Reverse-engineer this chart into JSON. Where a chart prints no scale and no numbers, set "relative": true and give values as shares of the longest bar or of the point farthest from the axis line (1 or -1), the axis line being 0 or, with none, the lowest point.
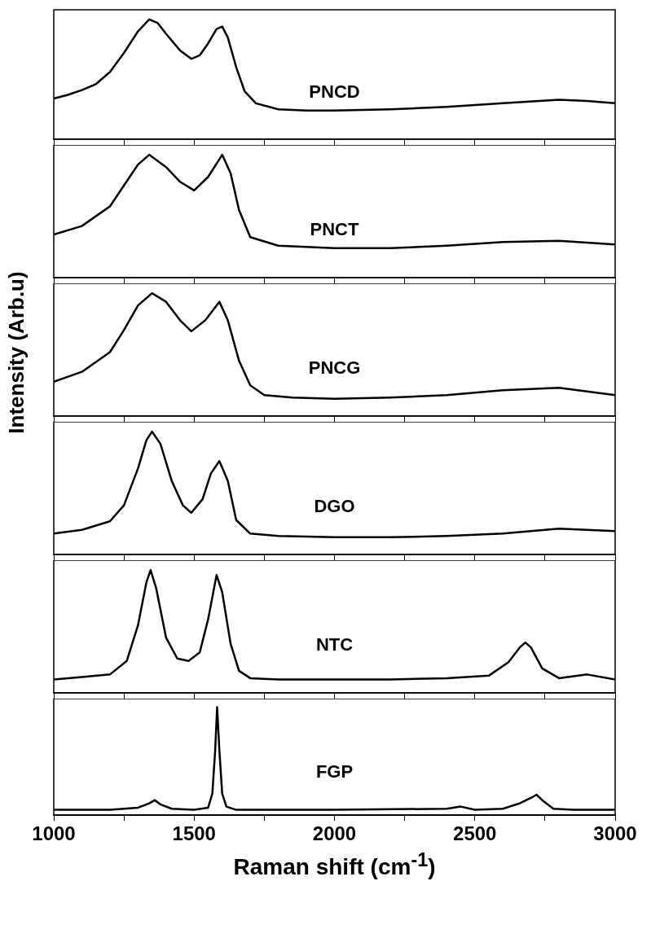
{
  "chart_data": [
    {
      "type": "line",
      "relative": true,
      "tick_labels": false,
      "xlim": [
        1000,
        3000
      ],
      "xticks": [
        1000,
        {
          "value": 1250,
          "label": null
        },
        1500,
        {
          "value": 1750,
          "label": null
        },
        2000,
        {
          "value": 2250,
          "label": null
        },
        2500,
        {
          "value": 2750,
          "label": null
        },
        3000
      ],
      "x": [
        1000,
        1050,
        1100,
        1150,
        1200,
        1250,
        1300,
        1340,
        1370,
        1400,
        1450,
        1490,
        1520,
        1550,
        1580,
        1600,
        1620,
        1650,
        1680,
        1720,
        1800,
        1900,
        2000,
        2200,
        2400,
        2600,
        2800,
        2900,
        3000
      ],
      "series": [
        {
          "name": "PNCD",
          "color": "#000000",
          "values": [
            0.34,
            0.37,
            0.41,
            0.46,
            0.56,
            0.72,
            0.9,
            1.0,
            0.97,
            0.88,
            0.74,
            0.67,
            0.7,
            0.8,
            0.92,
            0.94,
            0.85,
            0.6,
            0.4,
            0.3,
            0.25,
            0.24,
            0.24,
            0.25,
            0.27,
            0.3,
            0.33,
            0.32,
            0.3
          ]
        }
      ]
    },
    {
      "type": "line",
      "relative": true,
      "tick_labels": false,
      "xlim": [
        1000,
        3000
      ],
      "xticks": [
        1000,
        {
          "value": 1250,
          "label": null
        },
        1500,
        {
          "value": 1750,
          "label": null
        },
        2000,
        {
          "value": 2250,
          "label": null
        },
        2500,
        {
          "value": 2750,
          "label": null
        },
        3000
      ],
      "x": [
        1000,
        1100,
        1200,
        1250,
        1300,
        1340,
        1400,
        1450,
        1500,
        1550,
        1600,
        1630,
        1660,
        1700,
        1800,
        2000,
        2200,
        2400,
        2600,
        2800,
        3000
      ],
      "series": [
        {
          "name": "PNCT",
          "color": "#000000",
          "values": [
            0.35,
            0.42,
            0.58,
            0.75,
            0.92,
            1.0,
            0.9,
            0.78,
            0.71,
            0.82,
            1.0,
            0.85,
            0.55,
            0.33,
            0.26,
            0.24,
            0.24,
            0.26,
            0.29,
            0.3,
            0.27
          ]
        }
      ]
    },
    {
      "type": "line",
      "relative": true,
      "tick_labels": false,
      "xlim": [
        1000,
        3000
      ],
      "xticks": [
        1000,
        {
          "value": 1250,
          "label": null
        },
        1500,
        {
          "value": 1750,
          "label": null
        },
        2000,
        {
          "value": 2250,
          "label": null
        },
        2500,
        {
          "value": 2750,
          "label": null
        },
        3000
      ],
      "ylabel": "Intensity (Arb.u)",
      "x": [
        1000,
        1100,
        1200,
        1250,
        1300,
        1350,
        1400,
        1450,
        1490,
        1540,
        1590,
        1620,
        1660,
        1700,
        1750,
        1850,
        2000,
        2200,
        2400,
        2600,
        2800,
        3000
      ],
      "series": [
        {
          "name": "PNCG",
          "color": "#000000",
          "values": [
            0.28,
            0.36,
            0.52,
            0.7,
            0.9,
            1.0,
            0.93,
            0.78,
            0.69,
            0.78,
            0.93,
            0.78,
            0.45,
            0.25,
            0.17,
            0.15,
            0.14,
            0.15,
            0.17,
            0.21,
            0.23,
            0.17
          ]
        }
      ]
    },
    {
      "type": "line",
      "relative": true,
      "tick_labels": false,
      "xlim": [
        1000,
        3000
      ],
      "xticks": [
        1000,
        {
          "value": 1250,
          "label": null
        },
        1500,
        {
          "value": 1750,
          "label": null
        },
        2000,
        {
          "value": 2250,
          "label": null
        },
        2500,
        {
          "value": 2750,
          "label": null
        },
        3000
      ],
      "x": [
        1000,
        1100,
        1200,
        1250,
        1300,
        1330,
        1350,
        1380,
        1420,
        1460,
        1490,
        1530,
        1560,
        1590,
        1620,
        1650,
        1700,
        1800,
        2000,
        2200,
        2400,
        2600,
        2800,
        3000
      ],
      "series": [
        {
          "name": "DGO",
          "color": "#000000",
          "values": [
            0.17,
            0.2,
            0.27,
            0.4,
            0.7,
            0.93,
            1.0,
            0.9,
            0.6,
            0.4,
            0.34,
            0.45,
            0.66,
            0.76,
            0.6,
            0.28,
            0.17,
            0.15,
            0.14,
            0.14,
            0.15,
            0.17,
            0.21,
            0.19
          ]
        }
      ]
    },
    {
      "type": "line",
      "relative": true,
      "tick_labels": false,
      "xlim": [
        1000,
        3000
      ],
      "xticks": [
        1000,
        {
          "value": 1250,
          "label": null
        },
        1500,
        {
          "value": 1750,
          "label": null
        },
        2000,
        {
          "value": 2250,
          "label": null
        },
        2500,
        {
          "value": 2750,
          "label": null
        },
        3000
      ],
      "x": [
        1000,
        1100,
        1200,
        1260,
        1300,
        1330,
        1345,
        1365,
        1400,
        1440,
        1480,
        1520,
        1550,
        1580,
        1600,
        1630,
        1660,
        1700,
        1800,
        2000,
        2200,
        2400,
        2550,
        2620,
        2660,
        2680,
        2700,
        2740,
        2800,
        2900,
        3000
      ],
      "series": [
        {
          "name": "NTC",
          "color": "#000000",
          "values": [
            0.11,
            0.13,
            0.15,
            0.26,
            0.55,
            0.9,
            1.0,
            0.85,
            0.45,
            0.28,
            0.26,
            0.33,
            0.6,
            0.96,
            0.82,
            0.4,
            0.18,
            0.12,
            0.11,
            0.11,
            0.11,
            0.12,
            0.14,
            0.25,
            0.37,
            0.41,
            0.37,
            0.2,
            0.12,
            0.15,
            0.11
          ]
        }
      ]
    },
    {
      "type": "line",
      "relative": true,
      "tick_labels": "x",
      "xlabel": "Raman shift (cm$^{-1}$)",
      "xlim": [
        1000,
        3000
      ],
      "xticks": [
        1000,
        {
          "value": 1250,
          "label": null
        },
        1500,
        {
          "value": 1750,
          "label": null
        },
        2000,
        {
          "value": 2250,
          "label": null
        },
        2500,
        {
          "value": 2750,
          "label": null
        },
        3000
      ],
      "x": [
        1000,
        1200,
        1300,
        1340,
        1360,
        1380,
        1420,
        1500,
        1550,
        1565,
        1575,
        1582,
        1590,
        1600,
        1615,
        1650,
        1800,
        2000,
        2400,
        2450,
        2500,
        2600,
        2660,
        2700,
        2720,
        2740,
        2780,
        2850,
        3000
      ],
      "series": [
        {
          "name": "FGP",
          "color": "#000000",
          "values": [
            0.05,
            0.05,
            0.07,
            0.11,
            0.14,
            0.1,
            0.06,
            0.05,
            0.07,
            0.2,
            0.6,
            1.0,
            0.6,
            0.2,
            0.08,
            0.05,
            0.05,
            0.05,
            0.06,
            0.08,
            0.05,
            0.06,
            0.11,
            0.16,
            0.19,
            0.14,
            0.06,
            0.05,
            0.05
          ]
        }
      ]
    }
  ]
}
